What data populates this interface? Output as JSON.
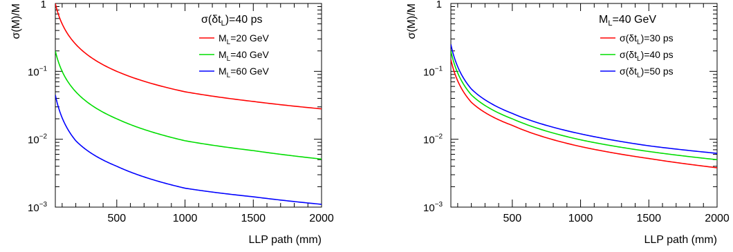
{
  "chart_data": [
    {
      "type": "line",
      "title": "",
      "xlabel": "LLP path (mm)",
      "ylabel": "σ(M)/M",
      "xlim": [
        50,
        2000
      ],
      "ylim": [
        0.001,
        1
      ],
      "yscale": "log",
      "grid": false,
      "x_ticks": [
        "500",
        "1000",
        "1500",
        "2000"
      ],
      "legend_header": {
        "main": "σ(δt",
        "sub": "L",
        "tail": ")=40 ps"
      },
      "legend_position": "top-right",
      "series": [
        {
          "label_main": "M",
          "label_sub": "L",
          "label_tail": "=20 GeV",
          "color": "#ff0000",
          "points": [
            [
              50,
              1.0
            ],
            [
              200,
              0.25
            ],
            [
              500,
              0.1
            ],
            [
              1000,
              0.05
            ],
            [
              1500,
              0.036
            ],
            [
              2000,
              0.028
            ]
          ]
        },
        {
          "label_main": "M",
          "label_sub": "L",
          "label_tail": "=40 GeV",
          "color": "#00dd00",
          "points": [
            [
              50,
              0.2
            ],
            [
              200,
              0.05
            ],
            [
              500,
              0.02
            ],
            [
              1000,
              0.0095
            ],
            [
              1500,
              0.0068
            ],
            [
              2000,
              0.0051
            ]
          ]
        },
        {
          "label_main": "M",
          "label_sub": "L",
          "label_tail": "=60 GeV",
          "color": "#0000ff",
          "points": [
            [
              50,
              0.045
            ],
            [
              200,
              0.0095
            ],
            [
              500,
              0.004
            ],
            [
              1000,
              0.0019
            ],
            [
              1500,
              0.00142
            ],
            [
              2000,
              0.0011
            ]
          ]
        }
      ]
    },
    {
      "type": "line",
      "title": "",
      "xlabel": "LLP path (mm)",
      "ylabel": "σ(M)/M",
      "xlim": [
        50,
        2000
      ],
      "ylim": [
        0.001,
        1
      ],
      "yscale": "log",
      "grid": false,
      "x_ticks": [
        "500",
        "1000",
        "1500",
        "2000"
      ],
      "legend_header": {
        "main": "M",
        "sub": "L",
        "tail": "=40 GeV"
      },
      "legend_position": "top-right",
      "series": [
        {
          "label_main": "σ(δt",
          "label_sub": "L",
          "label_tail": ")=30 ps",
          "color": "#ff0000",
          "points": [
            [
              50,
              0.15
            ],
            [
              200,
              0.035
            ],
            [
              500,
              0.016
            ],
            [
              1000,
              0.0078
            ],
            [
              1500,
              0.0052
            ],
            [
              2000,
              0.0038
            ]
          ]
        },
        {
          "label_main": "σ(δt",
          "label_sub": "L",
          "label_tail": ")=40 ps",
          "color": "#00dd00",
          "points": [
            [
              50,
              0.2
            ],
            [
              200,
              0.045
            ],
            [
              500,
              0.02
            ],
            [
              1000,
              0.0098
            ],
            [
              1500,
              0.0066
            ],
            [
              2000,
              0.005
            ]
          ]
        },
        {
          "label_main": "σ(δt",
          "label_sub": "L",
          "label_tail": ")=50 ps",
          "color": "#0000ff",
          "points": [
            [
              50,
              0.25
            ],
            [
              200,
              0.055
            ],
            [
              500,
              0.024
            ],
            [
              1000,
              0.012
            ],
            [
              1500,
              0.008
            ],
            [
              2000,
              0.0062
            ]
          ]
        }
      ]
    }
  ]
}
